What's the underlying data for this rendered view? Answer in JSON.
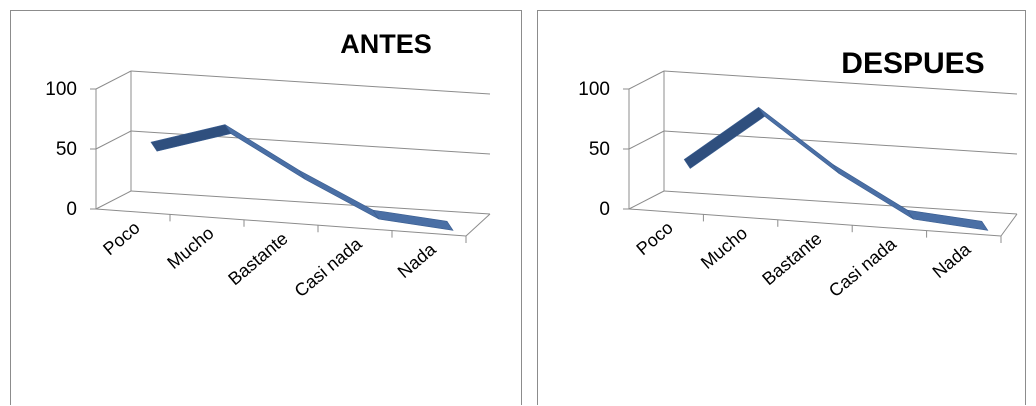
{
  "charts": [
    {
      "chart_data": {
        "type": "line",
        "title": "ANTES",
        "categories": [
          "Poco",
          "Mucho",
          "Bastante",
          "Casi nada",
          "Nada"
        ],
        "values": [
          50,
          70,
          35,
          5,
          0
        ],
        "ylim": [
          0,
          100
        ],
        "yticks": [
          "0",
          "50",
          "100"
        ],
        "grid": true,
        "color": "#4a6fa5",
        "style": "3d-ribbon"
      }
    },
    {
      "chart_data": {
        "type": "line",
        "title": "DESPUES",
        "categories": [
          "Poco",
          "Mucho",
          "Bastante",
          "Casi nada",
          "Nada"
        ],
        "values": [
          35,
          85,
          40,
          5,
          0
        ],
        "ylim": [
          0,
          100
        ],
        "yticks": [
          "0",
          "50",
          "100"
        ],
        "grid": true,
        "color": "#4a6fa5",
        "style": "3d-ribbon"
      }
    }
  ]
}
